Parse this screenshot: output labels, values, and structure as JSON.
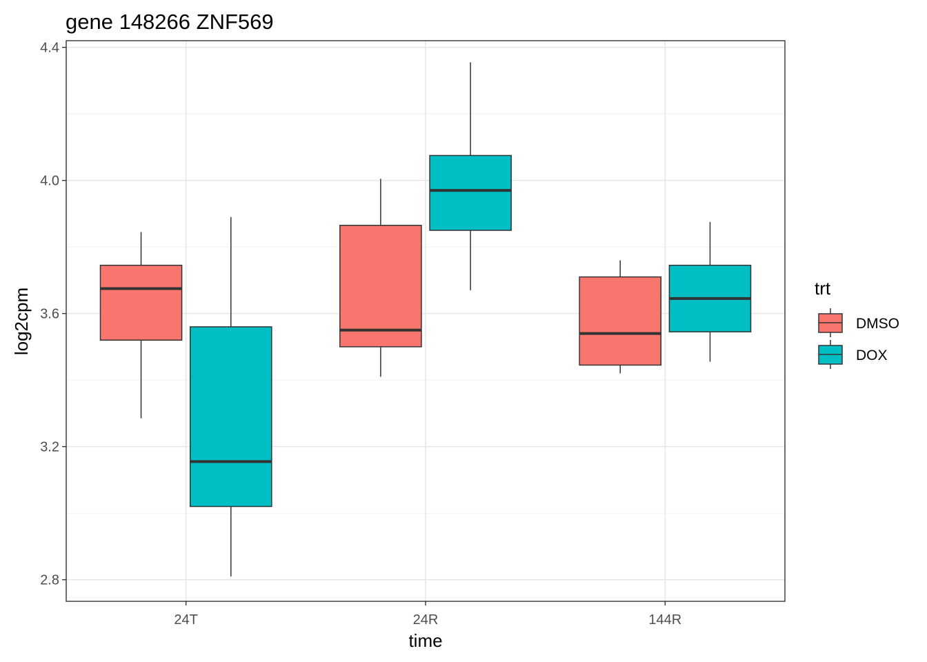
{
  "chart_data": {
    "type": "boxplot",
    "title": "gene 148266 ZNF569",
    "xlabel": "time",
    "ylabel": "log2cpm",
    "categories": [
      "24T",
      "24R",
      "144R"
    ],
    "ylim": [
      2.735,
      4.42
    ],
    "yticks": [
      2.8,
      3.2,
      3.6,
      4.0,
      4.4
    ],
    "ytick_labels": [
      "2.8",
      "3.2",
      "3.6",
      "4.0",
      "4.4"
    ],
    "grid": true,
    "legend": {
      "title": "trt",
      "position": "right",
      "entries": [
        "DMSO",
        "DOX"
      ]
    },
    "series": [
      {
        "name": "DMSO",
        "color": "#f8766d",
        "boxes": [
          {
            "category": "24T",
            "whisker_low": 3.285,
            "q1": 3.52,
            "median": 3.675,
            "q3": 3.745,
            "whisker_high": 3.845
          },
          {
            "category": "24R",
            "whisker_low": 3.41,
            "q1": 3.5,
            "median": 3.55,
            "q3": 3.865,
            "whisker_high": 4.005
          },
          {
            "category": "144R",
            "whisker_low": 3.42,
            "q1": 3.445,
            "median": 3.54,
            "q3": 3.71,
            "whisker_high": 3.76
          }
        ]
      },
      {
        "name": "DOX",
        "color": "#00bfc4",
        "boxes": [
          {
            "category": "24T",
            "whisker_low": 2.81,
            "q1": 3.02,
            "median": 3.155,
            "q3": 3.56,
            "whisker_high": 3.89
          },
          {
            "category": "24R",
            "whisker_low": 3.67,
            "q1": 3.85,
            "median": 3.97,
            "q3": 4.075,
            "whisker_high": 4.355
          },
          {
            "category": "144R",
            "whisker_low": 3.455,
            "q1": 3.545,
            "median": 3.645,
            "q3": 3.745,
            "whisker_high": 3.875
          }
        ]
      }
    ]
  }
}
